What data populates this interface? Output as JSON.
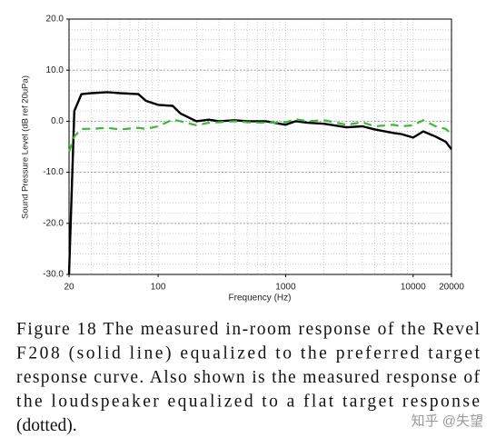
{
  "chart_data": {
    "type": "line",
    "xlabel": "Frequency (Hz)",
    "ylabel": "Sound Pressure Level (dB ref 20uPa)",
    "x": [
      20,
      22,
      25,
      30,
      40,
      50,
      70,
      80,
      100,
      130,
      150,
      200,
      250,
      300,
      400,
      500,
      700,
      1000,
      1200,
      1500,
      2000,
      3000,
      4000,
      5000,
      7000,
      8000,
      10000,
      12000,
      15000,
      18000,
      20000
    ],
    "series": [
      {
        "color": "#000000",
        "style": "solid",
        "values": [
          -30,
          2,
          5.3,
          5.5,
          5.7,
          5.5,
          5.3,
          4,
          3.2,
          3,
          1.5,
          0,
          0.3,
          0,
          0.2,
          0,
          0,
          -0.7,
          0,
          -0.3,
          -0.5,
          -1.2,
          -1,
          -1.6,
          -2.3,
          -2.5,
          -3.2,
          -2,
          -3,
          -4,
          -5.5
        ]
      },
      {
        "color": "#3cb834",
        "style": "dashed",
        "values": [
          -6,
          -3,
          -1.5,
          -1.5,
          -1.3,
          -1.6,
          -1.3,
          -1.5,
          -1,
          0.3,
          0,
          -0.8,
          -0.3,
          -0.2,
          0,
          -0.2,
          -0.3,
          -0.2,
          0.4,
          0,
          0.2,
          -0.7,
          -0.2,
          -1,
          -0.7,
          -1,
          -0.8,
          0.2,
          -1,
          -1.5,
          -2.5
        ]
      }
    ],
    "xscale": "log",
    "xlim": [
      20,
      20000
    ],
    "xticks": [
      20,
      100,
      1000,
      10000,
      20000
    ],
    "ylim": [
      -30,
      20
    ],
    "yticks": [
      {
        "value": 20,
        "label": "20.0"
      },
      {
        "value": 10,
        "label": "10.0"
      },
      {
        "value": 0,
        "label": "0.0"
      },
      {
        "value": -10,
        "label": "-10.0"
      },
      {
        "value": -20,
        "label": "-20.0"
      },
      {
        "value": -30,
        "label": "-30.0"
      }
    ],
    "grid": true
  },
  "caption": [
    "Figure 18 The measured in-room response of the Revel",
    "F208 (solid line) equalized to the preferred target",
    "response curve. Also shown is the measured response of",
    "the loudspeaker equalized to a flat target response",
    "(dotted)."
  ],
  "watermark": "知乎 @失望"
}
